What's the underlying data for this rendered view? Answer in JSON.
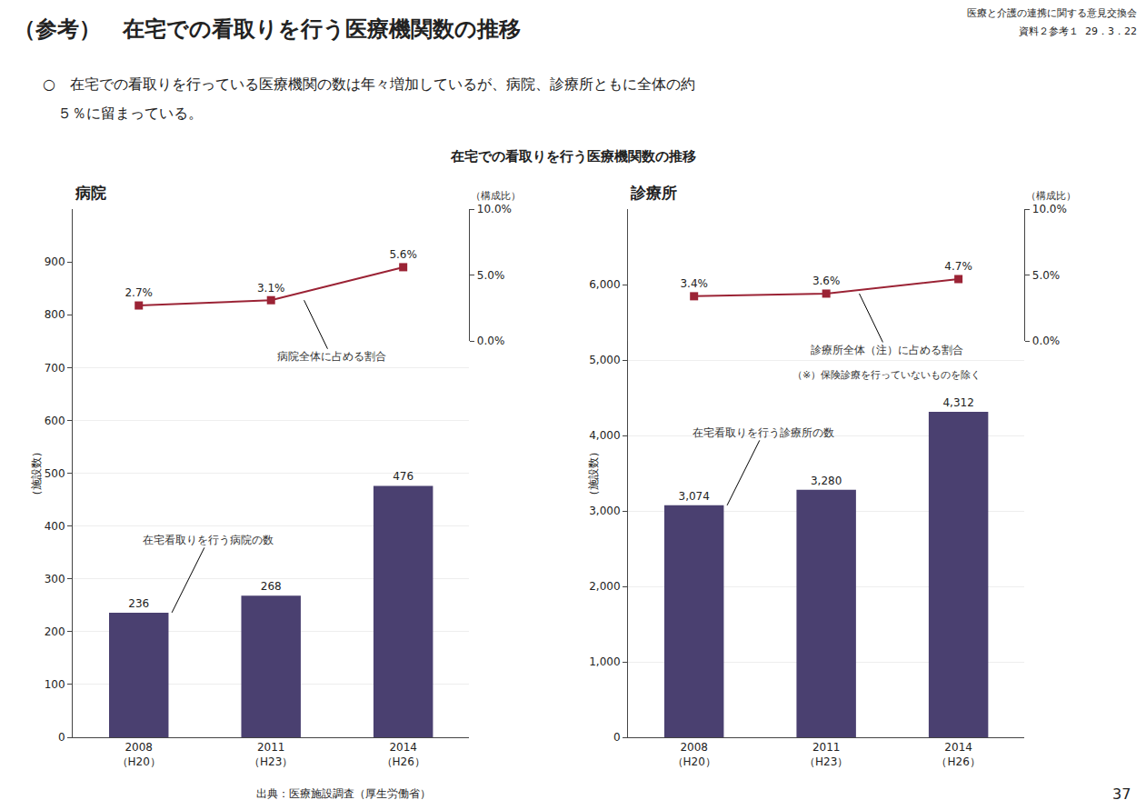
{
  "title": "（参考）　在宅での看取りを行う医療機関数の推移",
  "subtitle": [
    "医療と介護の連携に関する意見交換会",
    "資料２参考１  29．3．22"
  ],
  "bullets": [
    "○　在宅での看取りを行っている医療機関の数は年々増加しているが、病院、診療所ともに全体の約",
    "　５％に留まっている。"
  ],
  "section_title": "在宅での看取りを行う医療機関数の推移",
  "source": "出典：医療施設調査（厚生労働省）",
  "page_number": "37",
  "chart_data": [
    {
      "type": "bar",
      "title": "病院",
      "categories": [
        "2008\n（H20）",
        "2011\n（H23）",
        "2014\n（H26）"
      ],
      "ylabel": "（施設数）",
      "y2label": "（構成比）",
      "ylim": [
        0,
        1000
      ],
      "yticks": [
        0,
        100,
        200,
        300,
        400,
        500,
        600,
        700,
        800,
        900
      ],
      "y2lim": [
        0.0,
        10.0
      ],
      "y2ticks": [
        {
          "value": 0.0,
          "label": "0.0%"
        },
        {
          "value": 5.0,
          "label": "5.0%"
        },
        {
          "value": 10.0,
          "label": "10.0%"
        }
      ],
      "grid": true,
      "data_labels": true,
      "series": [
        {
          "type": "bar",
          "color": "#4a4070",
          "values": [
            236,
            268,
            476
          ]
        },
        {
          "type": "line",
          "axis": "y2",
          "color": "#9b2335",
          "marker": "square",
          "values": [
            2.7,
            3.1,
            5.6
          ],
          "value_labels": [
            "2.7%",
            "3.1%",
            "5.6%"
          ]
        }
      ],
      "annotations": [
        "病院全体に占める割合",
        "在宅看取りを行う病院の数"
      ]
    },
    {
      "type": "bar",
      "title": "診療所",
      "categories": [
        "2008\n（H20）",
        "2011\n（H23）",
        "2014\n（H26）"
      ],
      "ylabel": "（施設数）",
      "y2label": "（構成比）",
      "ylim": [
        0,
        7000
      ],
      "yticks": [
        0,
        {
          "value": 1000,
          "label": "1,000"
        },
        {
          "value": 2000,
          "label": "2,000"
        },
        {
          "value": 3000,
          "label": "3,000"
        },
        {
          "value": 4000,
          "label": "4,000"
        },
        {
          "value": 5000,
          "label": "5,000"
        },
        {
          "value": 6000,
          "label": "6,000"
        }
      ],
      "y2lim": [
        0.0,
        10.0
      ],
      "y2ticks": [
        {
          "value": 0.0,
          "label": "0.0%"
        },
        {
          "value": 5.0,
          "label": "5.0%"
        },
        {
          "value": 10.0,
          "label": "10.0%"
        }
      ],
      "grid": true,
      "data_labels": true,
      "series": [
        {
          "type": "bar",
          "color": "#4a4070",
          "values": [
            3074,
            3280,
            4312
          ],
          "value_labels": [
            "3,074",
            "3,280",
            "4,312"
          ]
        },
        {
          "type": "line",
          "axis": "y2",
          "color": "#9b2335",
          "marker": "square",
          "values": [
            3.4,
            3.6,
            4.7
          ],
          "value_labels": [
            "3.4%",
            "3.6%",
            "4.7%"
          ]
        }
      ],
      "annotations": [
        "診療所全体（注）に占める割合",
        "在宅看取りを行う診療所の数",
        "（※）保険診療を行っていないものを除く"
      ]
    }
  ]
}
